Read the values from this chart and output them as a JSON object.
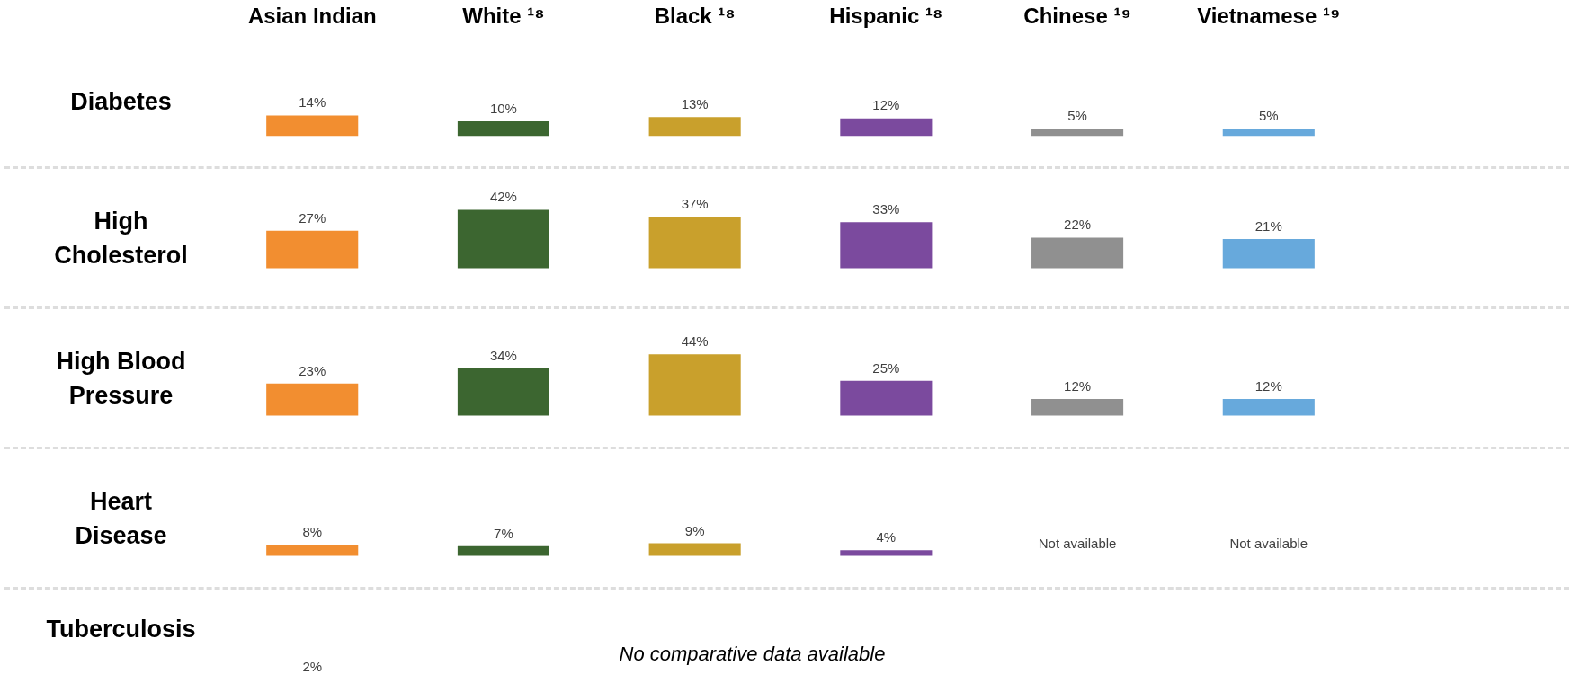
{
  "chart_data": [
    {
      "type": "bar",
      "title": "Diabetes",
      "categories": [
        "Asian Indian",
        "White ¹⁸",
        "Black ¹⁸",
        "Hispanic ¹⁸",
        "Chinese ¹⁹",
        "Vietnamese ¹⁹"
      ],
      "values": [
        14,
        10,
        13,
        12,
        5,
        5
      ],
      "value_labels": [
        "14%",
        "10%",
        "13%",
        "12%",
        "5%",
        "5%"
      ],
      "colors": [
        "#f28e30",
        "#3c6630",
        "#c9a02c",
        "#7b4a9e",
        "#909090",
        "#67a9dc"
      ],
      "tick_labels": "x"
    },
    {
      "type": "bar",
      "title": "High Cholesterol",
      "categories": [
        null,
        null,
        null,
        null,
        null,
        null
      ],
      "values": [
        27,
        42,
        37,
        33,
        22,
        21
      ],
      "value_labels": [
        "27%",
        "42%",
        "37%",
        "33%",
        "22%",
        "21%"
      ],
      "colors": [
        "#f28e30",
        "#3c6630",
        "#c9a02c",
        "#7b4a9e",
        "#909090",
        "#67a9dc"
      ]
    },
    {
      "type": "bar",
      "title": "High Blood Pressure",
      "categories": [
        null,
        null,
        null,
        null,
        null,
        null
      ],
      "values": [
        23,
        34,
        44,
        25,
        12,
        12
      ],
      "value_labels": [
        "23%",
        "34%",
        "44%",
        "25%",
        "12%",
        "12%"
      ],
      "colors": [
        "#f28e30",
        "#3c6630",
        "#c9a02c",
        "#7b4a9e",
        "#909090",
        "#67a9dc"
      ]
    },
    {
      "type": "bar",
      "title": "Heart Disease",
      "categories": [
        null,
        null,
        null,
        null,
        null,
        null
      ],
      "values": [
        8,
        7,
        9,
        4,
        null,
        null
      ],
      "value_labels": [
        "8%",
        "7%",
        "9%",
        "4%",
        "Not available",
        "Not available"
      ],
      "colors": [
        "#f28e30",
        "#3c6630",
        "#c9a02c",
        "#7b4a9e",
        "#909090",
        "#67a9dc"
      ]
    },
    {
      "type": "other",
      "title": "Tuberculosis",
      "values": [
        2
      ],
      "value_labels": [
        "2%"
      ],
      "annotations": [
        "No comparative data available"
      ]
    }
  ]
}
